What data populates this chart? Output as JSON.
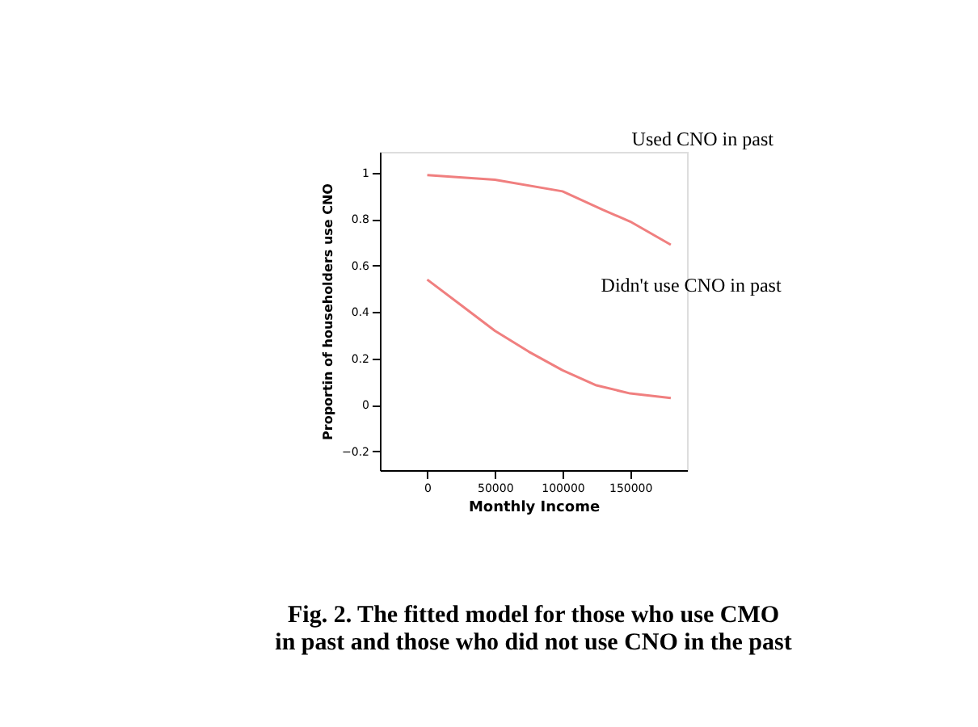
{
  "chart_data": {
    "type": "line",
    "title": "Fig. 2. The fitted model for those who use CMO in past and those who did not use CNO in the past",
    "xlabel": "Monthly Income",
    "ylabel": "Proportin of householders use CNO",
    "series": [
      {
        "x": [
          0,
          50000,
          100000,
          130000,
          150000,
          180000
        ],
        "values": [
          0.99,
          0.97,
          0.92,
          0.84,
          0.79,
          0.69
        ],
        "color": "#f07f7f"
      },
      {
        "x": [
          0,
          25000,
          50000,
          75000,
          100000,
          125000,
          150000,
          180000
        ],
        "values": [
          0.54,
          0.43,
          0.32,
          0.23,
          0.15,
          0.085,
          0.05,
          0.03
        ],
        "color": "#f07f7f"
      }
    ],
    "annotations": [
      "Used CNO in past",
      "Didn't use CNO in past"
    ],
    "xlim": [
      -35000,
      192000
    ],
    "xticks": [
      0,
      50000,
      100000,
      150000
    ],
    "ylim": [
      -0.28,
      1.09
    ],
    "yticks": [
      -0.2,
      0,
      0.2,
      0.4,
      0.6,
      0.8,
      1
    ],
    "grid": false,
    "marker": "none",
    "line_style": "solid"
  }
}
